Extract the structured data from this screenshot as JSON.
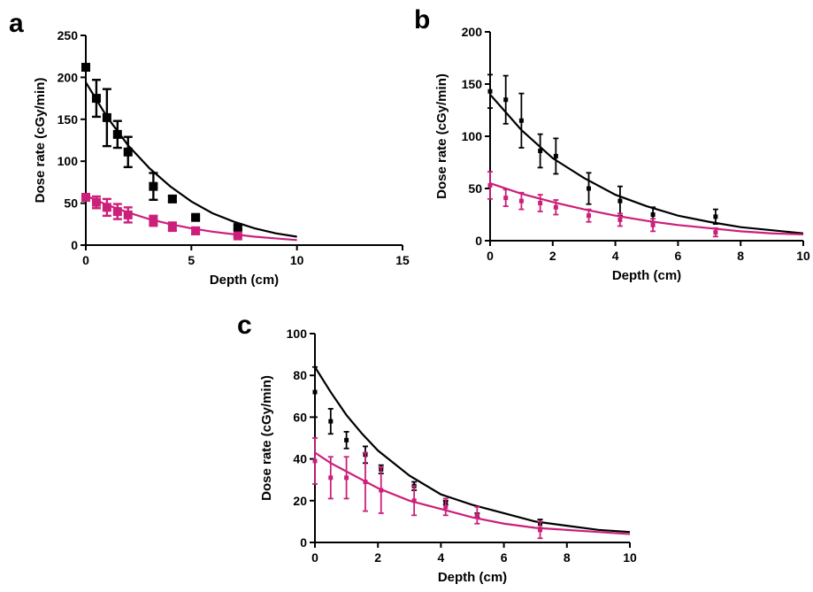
{
  "colors": {
    "black_series": "#000000",
    "magenta_series": "#cc1f7a"
  },
  "chart_data": [
    {
      "panel": "a",
      "type": "scatter",
      "xlabel": "Depth (cm)",
      "ylabel": "Dose rate (cGy/min)",
      "xlim": [
        0,
        15
      ],
      "ylim": [
        0,
        250
      ],
      "xticks": [
        0,
        5,
        10,
        15
      ],
      "yticks": [
        0,
        50,
        100,
        150,
        200,
        250
      ],
      "marker": "large",
      "series": [
        {
          "color": "black",
          "x": [
            0,
            0.5,
            1,
            1.5,
            2,
            3.2,
            4.1,
            5.2,
            7.2
          ],
          "y": [
            212,
            175,
            152,
            132,
            111,
            70,
            55,
            33,
            21
          ],
          "err": [
            0,
            22,
            34,
            16,
            18,
            16,
            3,
            2,
            2
          ],
          "fit": {
            "x": [
              0,
              1,
              2,
              3,
              4,
              5,
              6,
              7,
              8,
              9,
              10
            ],
            "y": [
              194,
              153,
              119,
              92,
              70,
              52,
              38,
              28,
              20,
              14,
              10
            ]
          }
        },
        {
          "color": "magenta",
          "x": [
            0,
            0.5,
            1,
            1.5,
            2,
            3.2,
            4.1,
            5.2,
            7.2
          ],
          "y": [
            57,
            51,
            45,
            40,
            36,
            29,
            22,
            17,
            11
          ],
          "err": [
            3,
            7,
            10,
            9,
            9,
            6,
            5,
            4,
            1
          ],
          "fit": {
            "x": [
              0,
              1,
              2,
              3,
              4,
              5,
              6,
              7,
              8,
              9,
              10
            ],
            "y": [
              59,
              48,
              39,
              31,
              25,
              20,
              16,
              13,
              10,
              8,
              6
            ]
          }
        }
      ]
    },
    {
      "panel": "b",
      "type": "scatter",
      "xlabel": "Depth (cm)",
      "ylabel": "Dose rate (cGy/min)",
      "xlim": [
        0,
        10
      ],
      "ylim": [
        0,
        200
      ],
      "xticks": [
        0,
        2,
        4,
        6,
        8,
        10
      ],
      "yticks": [
        0,
        50,
        100,
        150,
        200
      ],
      "marker": "small",
      "series": [
        {
          "color": "black",
          "x": [
            0,
            0.5,
            1,
            1.6,
            2.1,
            3.15,
            4.15,
            5.2,
            7.2
          ],
          "y": [
            143,
            135,
            115,
            86,
            81,
            50,
            38,
            25,
            23
          ],
          "err": [
            16,
            23,
            26,
            16,
            17,
            15,
            14,
            7,
            7
          ],
          "fit": {
            "x": [
              0,
              1,
              2,
              3,
              4,
              5,
              6,
              7,
              8,
              9,
              10
            ],
            "y": [
              140,
              106,
              79,
              60,
              44,
              33,
              24,
              18,
              13,
              10,
              7
            ]
          }
        },
        {
          "color": "magenta",
          "x": [
            0,
            0.5,
            1,
            1.6,
            2.1,
            3.15,
            4.15,
            5.2,
            7.2
          ],
          "y": [
            53,
            41,
            38,
            36,
            32,
            24,
            20,
            15,
            8
          ],
          "err": [
            13,
            8,
            8,
            8,
            7,
            6,
            6,
            6,
            4
          ],
          "fit": {
            "x": [
              0,
              1,
              2,
              3,
              4,
              5,
              6,
              7,
              8,
              9,
              10
            ],
            "y": [
              55,
              45,
              37,
              30,
              24,
              19,
              15,
              12,
              9,
              7,
              6
            ]
          }
        }
      ]
    },
    {
      "panel": "c",
      "type": "scatter",
      "xlabel": "Depth (cm)",
      "ylabel": "Dose rate (cGy/min)",
      "xlim": [
        0,
        10
      ],
      "ylim": [
        0,
        100
      ],
      "xticks": [
        0,
        2,
        4,
        6,
        8,
        10
      ],
      "yticks": [
        0,
        20,
        40,
        60,
        80,
        100
      ],
      "marker": "small",
      "series": [
        {
          "color": "black",
          "x": [
            0,
            0.5,
            1,
            1.6,
            2.1,
            3.15,
            4.15,
            5.15,
            7.15
          ],
          "y": [
            72,
            58,
            49,
            42,
            35,
            27,
            19,
            13,
            9
          ],
          "err": [
            12,
            6,
            4,
            4,
            2,
            2,
            1,
            1,
            2
          ],
          "fit": {
            "x": [
              0,
              0.5,
              1,
              1.5,
              2,
              3,
              4,
              5,
              6,
              7,
              8,
              9,
              10
            ],
            "y": [
              84,
              72,
              61,
              52,
              44,
              32,
              23,
              18,
              14,
              10,
              8,
              6,
              5
            ]
          }
        },
        {
          "color": "magenta",
          "x": [
            0,
            0.5,
            1,
            1.6,
            2.1,
            3.15,
            4.15,
            5.15,
            7.15
          ],
          "y": [
            39,
            31,
            31,
            29,
            25,
            20,
            17,
            13,
            6
          ],
          "err": [
            11,
            10,
            10,
            14,
            11,
            7,
            4,
            4,
            4
          ],
          "fit": {
            "x": [
              0,
              0.5,
              1,
              1.5,
              2,
              3,
              4,
              5,
              6,
              7,
              8,
              9,
              10
            ],
            "y": [
              43,
              38,
              34,
              30,
              26,
              20,
              16,
              12,
              9,
              7,
              6,
              5,
              4
            ]
          }
        }
      ]
    }
  ]
}
